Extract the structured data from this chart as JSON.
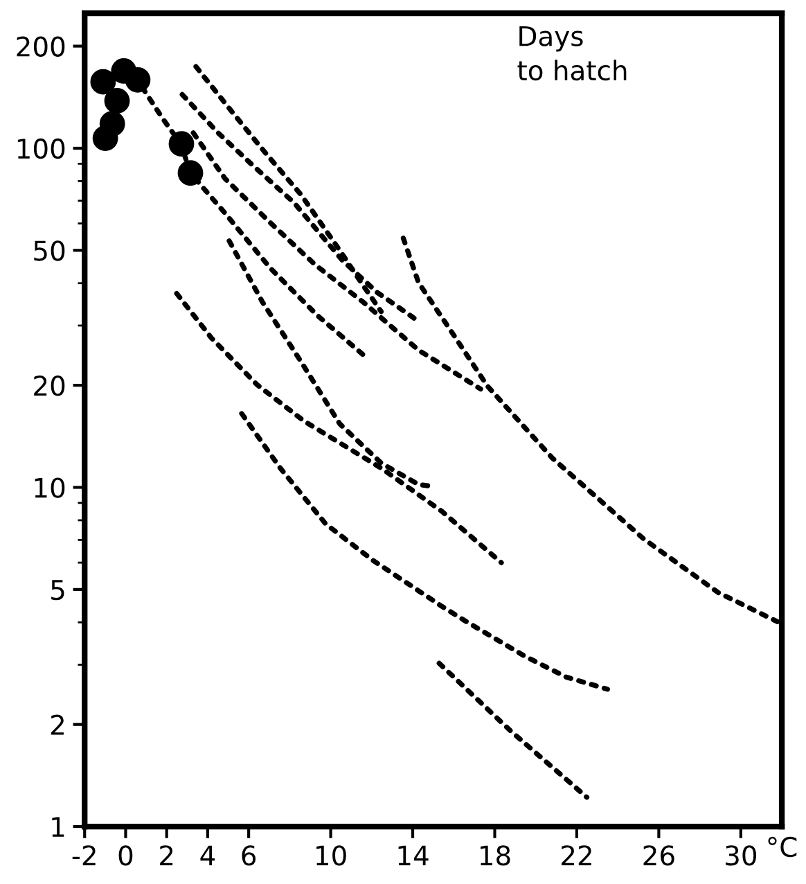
{
  "chart_data": {
    "type": "line",
    "xlabel": "°C",
    "annotations": [
      "Days\nto hatch"
    ],
    "log": "y",
    "grid": false,
    "legend": false,
    "xlim": [
      -2,
      32
    ],
    "ylim": [
      1,
      250
    ],
    "xticks": [
      -2,
      0,
      2,
      4,
      6,
      10,
      14,
      18,
      22,
      26,
      30
    ],
    "yticks": [
      1,
      2,
      5,
      10,
      20,
      50,
      100,
      200
    ],
    "series": [
      {
        "type": "scatter",
        "marker": "circle",
        "color": "#000000",
        "x": [
          -1.1,
          -0.65,
          -0.99,
          -0.42,
          -0.09,
          0.59,
          2.72,
          3.16
        ],
        "values": [
          157,
          118,
          107,
          138,
          169,
          159,
          103,
          84.5
        ]
      },
      {
        "line_style": "dotted",
        "marker": "none",
        "color": "#000000",
        "x": [
          3.43,
          5.19,
          6.87,
          8.55,
          10.44,
          11.58,
          12.46
        ],
        "values": [
          174,
          128,
          96,
          73,
          50,
          39.4,
          33
        ]
      },
      {
        "line_style": "dotted",
        "marker": "none",
        "color": "#000000",
        "x": [
          2.76,
          4.51,
          6.2,
          8.22,
          10.57,
          12.26,
          14.28
        ],
        "values": [
          144,
          111,
          89,
          69,
          46.7,
          37.6,
          30.9
        ]
      },
      {
        "line_style": "dotted",
        "marker": "none",
        "color": "#000000",
        "x": [
          3.3,
          4.85,
          7.07,
          9.23,
          11.58,
          14.28,
          17.31
        ],
        "values": [
          111,
          81.3,
          60.2,
          45.4,
          35.2,
          25.4,
          19.5
        ]
      },
      {
        "line_style": "dotted",
        "marker": "none",
        "color": "#000000",
        "x": [
          0.81,
          1.82,
          2.69,
          3.16,
          4.85,
          7.07,
          9.36,
          11.72
        ],
        "values": [
          151,
          122,
          103,
          84.5,
          64.3,
          44.2,
          32.1,
          24.2
        ]
      },
      {
        "line_style": "dotted",
        "marker": "none",
        "color": "#000000",
        "x": [
          5.05,
          6.67,
          8.55,
          10.44,
          12.46,
          14.28,
          14.8
        ],
        "values": [
          53.3,
          35.2,
          23.5,
          15.4,
          11.8,
          10.2,
          10.1
        ]
      },
      {
        "line_style": "dotted",
        "marker": "none",
        "color": "#000000",
        "x": [
          2.49,
          4.18,
          6.4,
          8.69,
          10.91,
          12.46,
          15.42,
          18.32
        ],
        "values": [
          37.3,
          27.6,
          20.1,
          15.7,
          13.0,
          11.4,
          8.5,
          6.0
        ]
      },
      {
        "line_style": "dotted",
        "marker": "none",
        "color": "#000000",
        "x": [
          5.66,
          7.54,
          9.76,
          12.05,
          15.42,
          16.5,
          19.46,
          21.48,
          23.5
        ],
        "values": [
          16.5,
          11.4,
          7.8,
          6.1,
          4.46,
          4.06,
          3.18,
          2.76,
          2.54
        ]
      },
      {
        "line_style": "dotted",
        "marker": "none",
        "color": "#000000",
        "x": [
          15.29,
          18.79,
          22.49
        ],
        "values": [
          3.03,
          1.91,
          1.22
        ]
      },
      {
        "line_style": "dotted",
        "marker": "none",
        "color": "#000000",
        "x": [
          13.54,
          14.28,
          16.09,
          17.64,
          20.81,
          25.25,
          28.89,
          31.78
        ],
        "values": [
          54.3,
          40.2,
          27.6,
          19.9,
          12.2,
          7.06,
          4.9,
          4.02
        ]
      }
    ]
  }
}
